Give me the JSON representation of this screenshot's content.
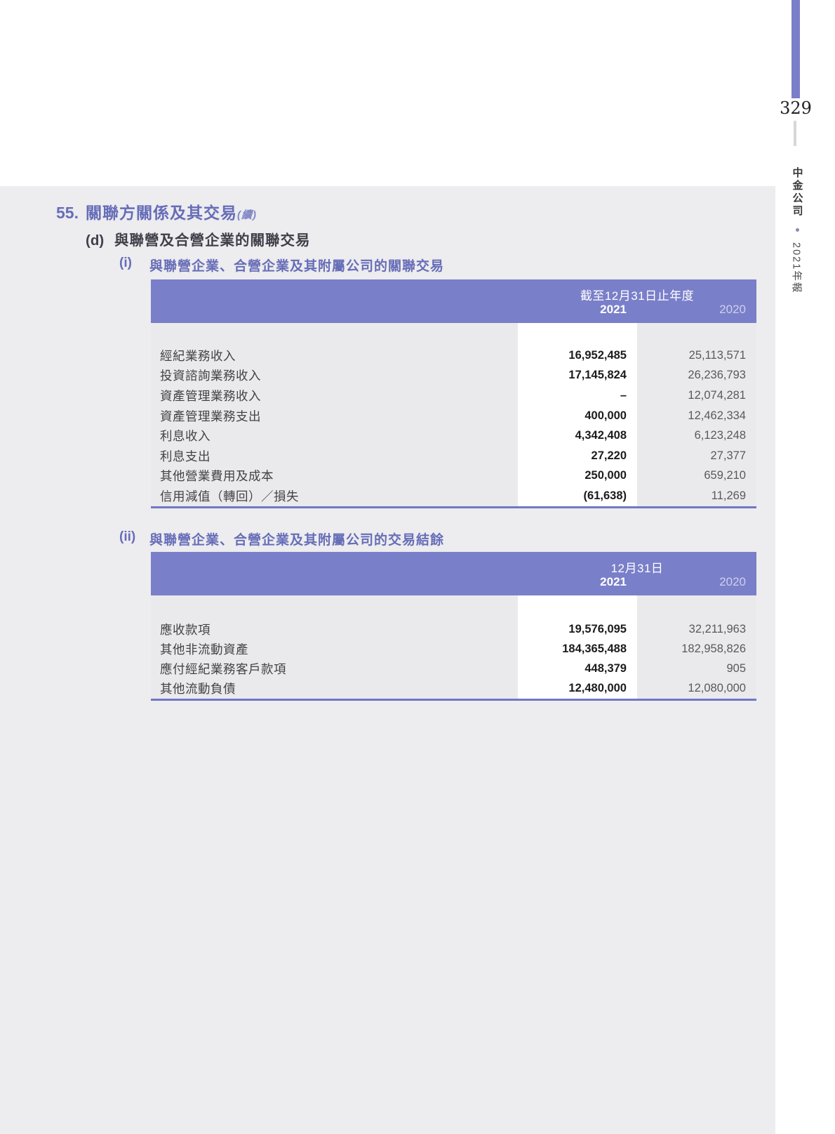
{
  "page": {
    "number": "329",
    "sidebar": {
      "company": "中金公司",
      "bullet": "•",
      "edition": "2021年報"
    }
  },
  "section": {
    "number": "55.",
    "title": "關聯方關係及其交易",
    "suffix": "(續)",
    "sub": {
      "marker": "(d)",
      "title": "與聯營及合營企業的關聯交易"
    }
  },
  "blocks": [
    {
      "marker": "(i)",
      "title": "與聯營企業、合營企業及其附屬公司的關聯交易",
      "table": {
        "period_label": "截至12月31日止年度",
        "year_current": "2021",
        "year_prior": "2020",
        "rows": [
          {
            "label": "經紀業務收入",
            "y2021": "16,952,485",
            "y2020": "25,113,571"
          },
          {
            "label": "投資諮詢業務收入",
            "y2021": "17,145,824",
            "y2020": "26,236,793"
          },
          {
            "label": "資產管理業務收入",
            "y2021": "–",
            "y2020": "12,074,281"
          },
          {
            "label": "資產管理業務支出",
            "y2021": "400,000",
            "y2020": "12,462,334"
          },
          {
            "label": "利息收入",
            "y2021": "4,342,408",
            "y2020": "6,123,248"
          },
          {
            "label": "利息支出",
            "y2021": "27,220",
            "y2020": "27,377"
          },
          {
            "label": "其他營業費用及成本",
            "y2021": "250,000",
            "y2020": "659,210"
          },
          {
            "label": "信用減值（轉回）／損失",
            "y2021": "(61,638)",
            "y2020": "11,269"
          }
        ]
      }
    },
    {
      "marker": "(ii)",
      "title": "與聯營企業、合營企業及其附屬公司的交易結餘",
      "table": {
        "period_label": "12月31日",
        "year_current": "2021",
        "year_prior": "2020",
        "rows": [
          {
            "label": "應收款項",
            "y2021": "19,576,095",
            "y2020": "32,211,963"
          },
          {
            "label": "其他非流動資產",
            "y2021": "184,365,488",
            "y2020": "182,958,826"
          },
          {
            "label": "應付經紀業務客戶款項",
            "y2021": "448,379",
            "y2020": "905"
          },
          {
            "label": "其他流動負債",
            "y2021": "12,480,000",
            "y2020": "12,080,000"
          }
        ]
      }
    }
  ],
  "colors": {
    "accent_purple": "#7a7fc9",
    "heading_purple": "#666db8",
    "table_border_purple": "#7277c4",
    "prior_year_label": "#ccd0ee",
    "page_background": "#edecee",
    "table_body_background": "#eaeaec",
    "highlight_column": "#ffffff"
  }
}
